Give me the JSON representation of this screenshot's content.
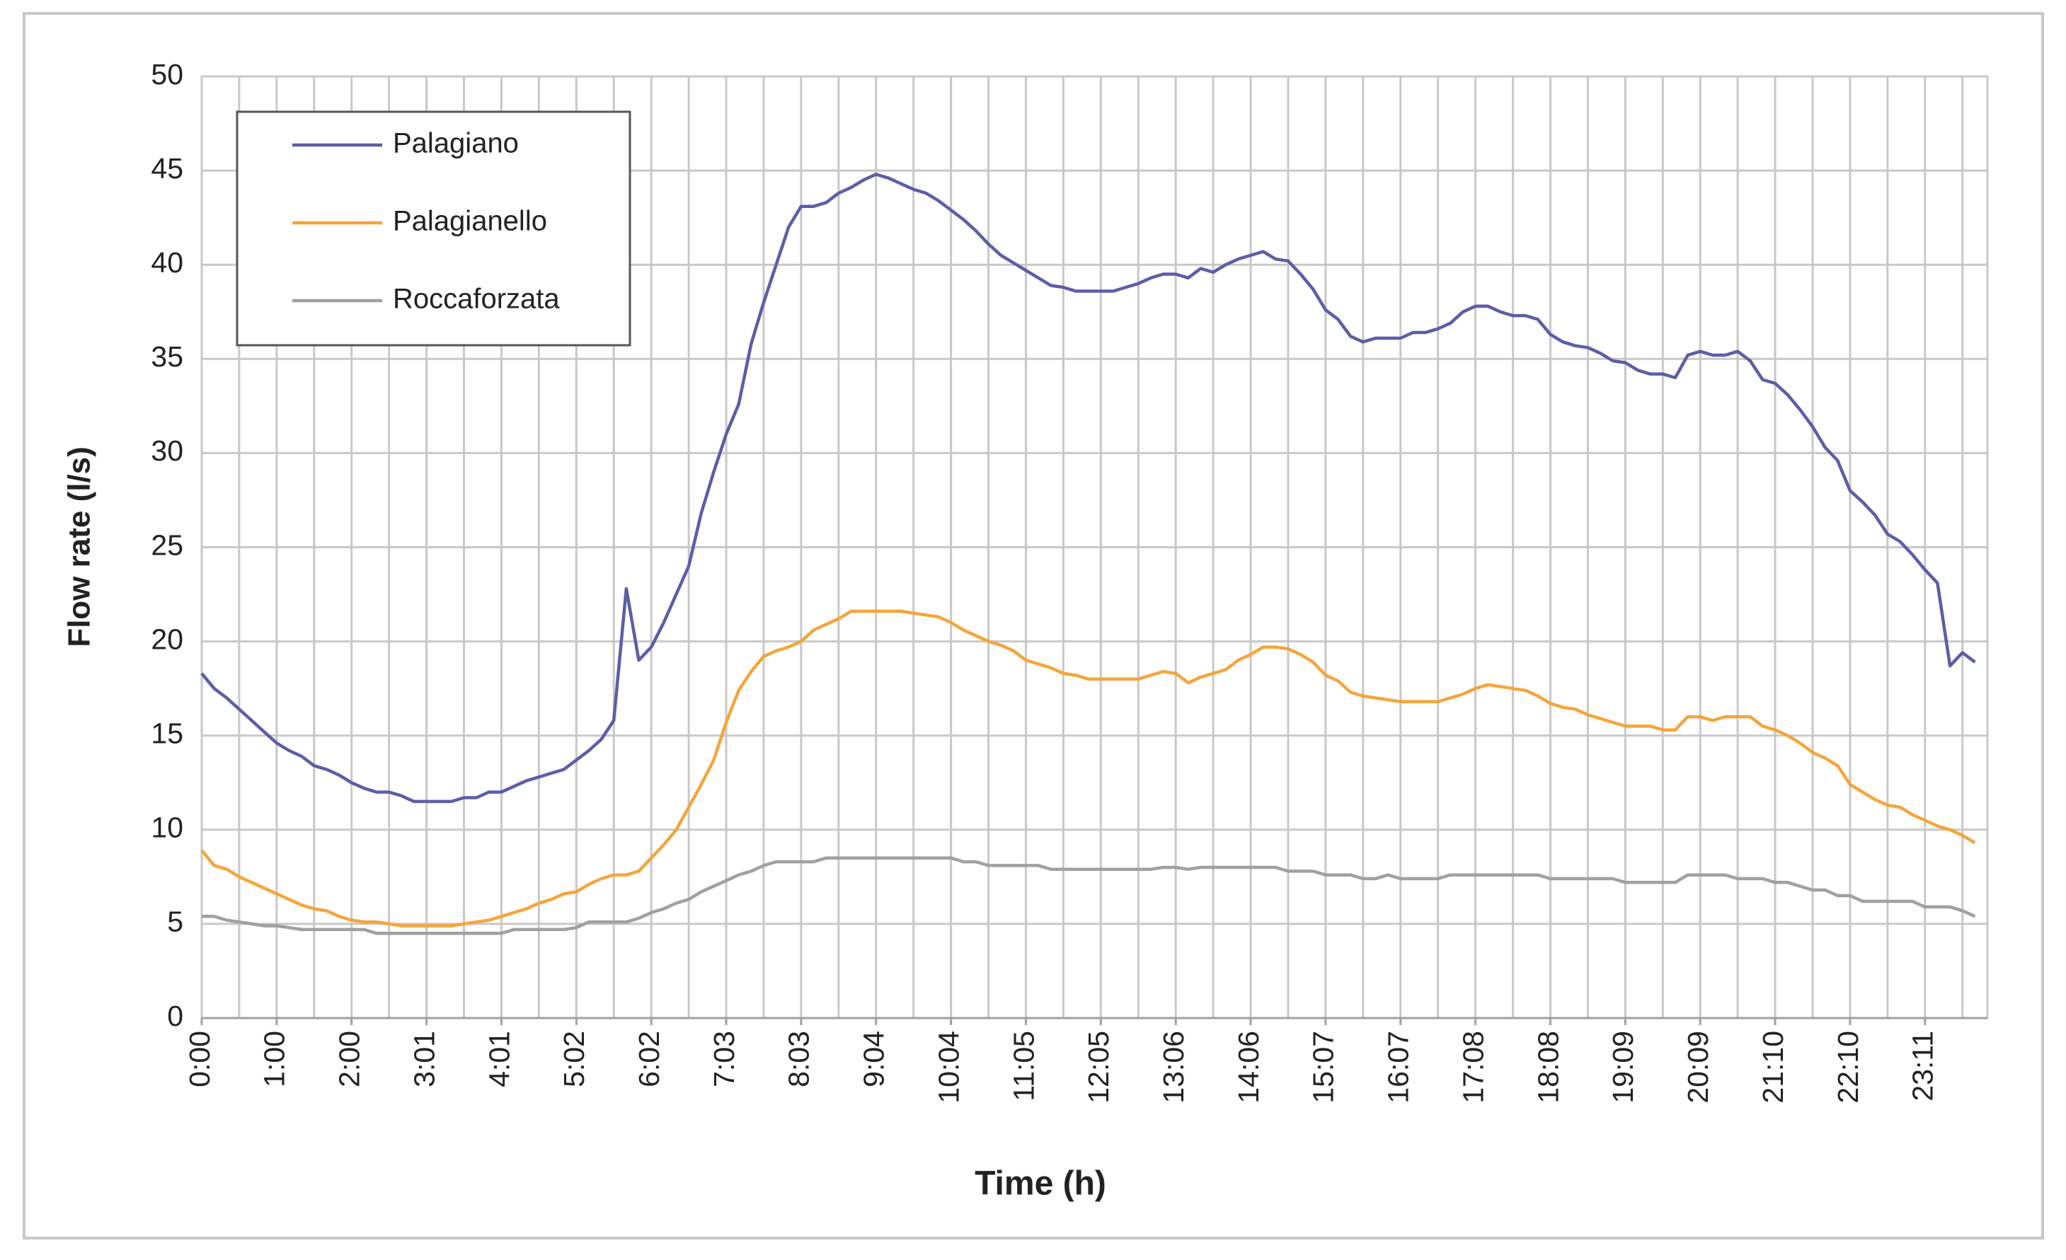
{
  "chart_data": {
    "type": "line",
    "xlabel": "Time (h)",
    "ylabel": "Flow rate (l/s)",
    "categories": [
      "0:00",
      null,
      null,
      null,
      null,
      null,
      "1:00",
      null,
      null,
      null,
      null,
      null,
      "2:00",
      null,
      null,
      null,
      null,
      null,
      "3:01",
      null,
      null,
      null,
      null,
      null,
      "4:01",
      null,
      null,
      null,
      null,
      null,
      "5:02",
      null,
      null,
      null,
      null,
      null,
      "6:02",
      null,
      null,
      null,
      null,
      null,
      "7:03",
      null,
      null,
      null,
      null,
      null,
      "8:03",
      null,
      null,
      null,
      null,
      null,
      "9:04",
      null,
      null,
      null,
      null,
      null,
      "10:04",
      null,
      null,
      null,
      null,
      null,
      "11:05",
      null,
      null,
      null,
      null,
      null,
      "12:05",
      null,
      null,
      null,
      null,
      null,
      "13:06",
      null,
      null,
      null,
      null,
      null,
      "14:06",
      null,
      null,
      null,
      null,
      null,
      "15:07",
      null,
      null,
      null,
      null,
      null,
      "16:07",
      null,
      null,
      null,
      null,
      null,
      "17:08",
      null,
      null,
      null,
      null,
      null,
      "18:08",
      null,
      null,
      null,
      null,
      null,
      "19:09",
      null,
      null,
      null,
      null,
      null,
      "20:09",
      null,
      null,
      null,
      null,
      null,
      "21:10",
      null,
      null,
      null,
      null,
      null,
      "22:10",
      null,
      null,
      null,
      null,
      null,
      "23:11",
      null,
      null,
      null,
      null
    ],
    "series": [
      {
        "name": "Palagiano",
        "color": "#5b5ea6",
        "values": [
          18.3,
          17.5,
          17.0,
          16.4,
          15.8,
          15.2,
          14.6,
          14.2,
          13.9,
          13.4,
          13.2,
          12.9,
          12.5,
          12.2,
          12.0,
          12.0,
          11.8,
          11.5,
          11.5,
          11.5,
          11.5,
          11.7,
          11.7,
          12.0,
          12.0,
          12.3,
          12.6,
          12.8,
          13.0,
          13.2,
          13.7,
          14.2,
          14.8,
          15.8,
          22.8,
          19.0,
          19.7,
          21.0,
          22.5,
          24.0,
          26.8,
          29.0,
          31.0,
          32.6,
          35.8,
          38.0,
          40.0,
          42.0,
          43.1,
          43.1,
          43.3,
          43.8,
          44.1,
          44.5,
          44.8,
          44.6,
          44.3,
          44.0,
          43.8,
          43.4,
          42.9,
          42.4,
          41.8,
          41.1,
          40.5,
          40.1,
          39.7,
          39.3,
          38.9,
          38.8,
          38.6,
          38.6,
          38.6,
          38.6,
          38.8,
          39.0,
          39.3,
          39.5,
          39.5,
          39.3,
          39.8,
          39.6,
          40.0,
          40.3,
          40.5,
          40.7,
          40.3,
          40.2,
          39.5,
          38.7,
          37.6,
          37.1,
          36.2,
          35.9,
          36.1,
          36.1,
          36.1,
          36.4,
          36.4,
          36.6,
          36.9,
          37.5,
          37.8,
          37.8,
          37.5,
          37.3,
          37.3,
          37.1,
          36.3,
          35.9,
          35.7,
          35.6,
          35.3,
          34.9,
          34.8,
          34.4,
          34.2,
          34.2,
          34.0,
          35.2,
          35.4,
          35.2,
          35.2,
          35.4,
          34.9,
          33.9,
          33.7,
          33.1,
          32.3,
          31.4,
          30.3,
          29.6,
          28.0,
          27.4,
          26.7,
          25.7,
          25.3,
          24.6,
          23.8,
          23.1,
          18.7,
          19.4,
          18.9
        ]
      },
      {
        "name": "Palagianello",
        "color": "#f5a53c",
        "values": [
          8.9,
          8.1,
          7.9,
          7.5,
          7.2,
          6.9,
          6.6,
          6.3,
          6.0,
          5.8,
          5.7,
          5.4,
          5.2,
          5.1,
          5.1,
          5.0,
          4.9,
          4.9,
          4.9,
          4.9,
          4.9,
          5.0,
          5.1,
          5.2,
          5.4,
          5.6,
          5.8,
          6.1,
          6.3,
          6.6,
          6.7,
          7.1,
          7.4,
          7.6,
          7.6,
          7.8,
          8.5,
          9.2,
          10.0,
          11.2,
          12.4,
          13.7,
          15.7,
          17.4,
          18.4,
          19.2,
          19.5,
          19.7,
          20.0,
          20.6,
          20.9,
          21.2,
          21.6,
          21.6,
          21.6,
          21.6,
          21.6,
          21.5,
          21.4,
          21.3,
          21.0,
          20.6,
          20.3,
          20.0,
          19.8,
          19.5,
          19.0,
          18.8,
          18.6,
          18.3,
          18.2,
          18.0,
          18.0,
          18.0,
          18.0,
          18.0,
          18.2,
          18.4,
          18.3,
          17.8,
          18.1,
          18.3,
          18.5,
          19.0,
          19.3,
          19.7,
          19.7,
          19.6,
          19.3,
          18.9,
          18.2,
          17.9,
          17.3,
          17.1,
          17.0,
          16.9,
          16.8,
          16.8,
          16.8,
          16.8,
          17.0,
          17.2,
          17.5,
          17.7,
          17.6,
          17.5,
          17.4,
          17.1,
          16.7,
          16.5,
          16.4,
          16.1,
          15.9,
          15.7,
          15.5,
          15.5,
          15.5,
          15.3,
          15.3,
          16.0,
          16.0,
          15.8,
          16.0,
          16.0,
          16.0,
          15.5,
          15.3,
          15.0,
          14.6,
          14.1,
          13.8,
          13.4,
          12.4,
          12.0,
          11.6,
          11.3,
          11.2,
          10.8,
          10.5,
          10.2,
          10.0,
          9.7,
          9.3
        ]
      },
      {
        "name": "Roccaforzata",
        "color": "#a0a0a0",
        "values": [
          5.4,
          5.4,
          5.2,
          5.1,
          5.0,
          4.9,
          4.9,
          4.8,
          4.7,
          4.7,
          4.7,
          4.7,
          4.7,
          4.7,
          4.5,
          4.5,
          4.5,
          4.5,
          4.5,
          4.5,
          4.5,
          4.5,
          4.5,
          4.5,
          4.5,
          4.7,
          4.7,
          4.7,
          4.7,
          4.7,
          4.8,
          5.1,
          5.1,
          5.1,
          5.1,
          5.3,
          5.6,
          5.8,
          6.1,
          6.3,
          6.7,
          7.0,
          7.3,
          7.6,
          7.8,
          8.1,
          8.3,
          8.3,
          8.3,
          8.3,
          8.5,
          8.5,
          8.5,
          8.5,
          8.5,
          8.5,
          8.5,
          8.5,
          8.5,
          8.5,
          8.5,
          8.3,
          8.3,
          8.1,
          8.1,
          8.1,
          8.1,
          8.1,
          7.9,
          7.9,
          7.9,
          7.9,
          7.9,
          7.9,
          7.9,
          7.9,
          7.9,
          8.0,
          8.0,
          7.9,
          8.0,
          8.0,
          8.0,
          8.0,
          8.0,
          8.0,
          8.0,
          7.8,
          7.8,
          7.8,
          7.6,
          7.6,
          7.6,
          7.4,
          7.4,
          7.6,
          7.4,
          7.4,
          7.4,
          7.4,
          7.6,
          7.6,
          7.6,
          7.6,
          7.6,
          7.6,
          7.6,
          7.6,
          7.4,
          7.4,
          7.4,
          7.4,
          7.4,
          7.4,
          7.2,
          7.2,
          7.2,
          7.2,
          7.2,
          7.6,
          7.6,
          7.6,
          7.6,
          7.4,
          7.4,
          7.4,
          7.2,
          7.2,
          7.0,
          6.8,
          6.8,
          6.5,
          6.5,
          6.2,
          6.2,
          6.2,
          6.2,
          6.2,
          5.9,
          5.9,
          5.9,
          5.7,
          5.4
        ]
      }
    ],
    "ylim": [
      0,
      50
    ],
    "yticks": [
      0,
      5,
      10,
      15,
      20,
      25,
      30,
      35,
      40,
      45,
      50
    ],
    "grid": true,
    "legend": "upper left"
  }
}
